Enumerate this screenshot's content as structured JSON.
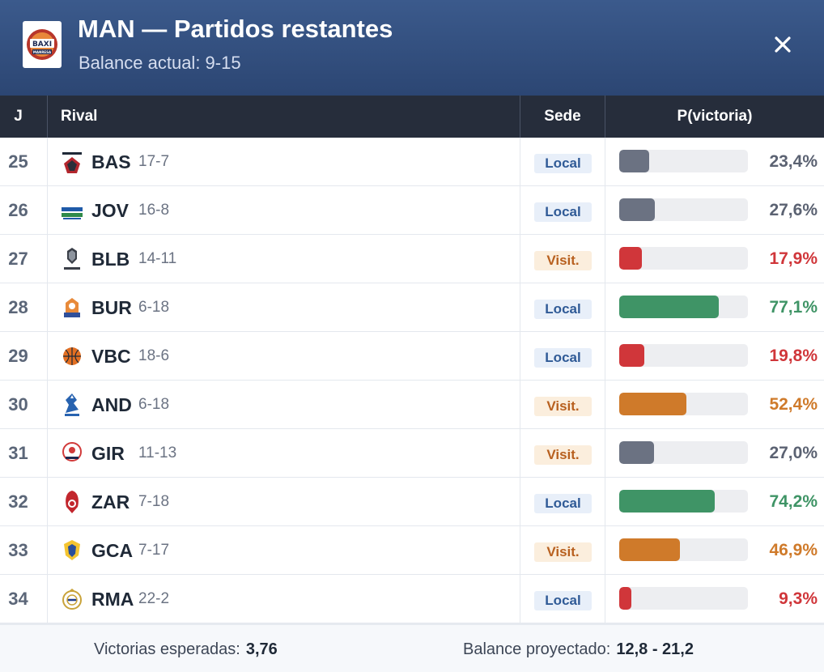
{
  "header": {
    "title": "MAN — Partidos restantes",
    "subtitle": "Balance actual: 9-15",
    "logo_text": "BAXI",
    "logo_subtext": "MANRESA"
  },
  "columns": {
    "j": "J",
    "rival": "Rival",
    "sede": "Sede",
    "prob": "P(victoria)"
  },
  "colors": {
    "low": "#d0363a",
    "mid": "#6b7282",
    "even": "#cf7a2a",
    "high": "#3f9466",
    "local_badge": "#2f5a96",
    "visit_badge": "#b8601f"
  },
  "games": [
    {
      "j": "25",
      "abbr": "BAS",
      "record": "17-7",
      "venue": "Local",
      "venue_type": "local",
      "p": 0.234,
      "p_text": "23,4%",
      "tier": "mid",
      "logo": "baskonia-logo"
    },
    {
      "j": "26",
      "abbr": "JOV",
      "record": "16-8",
      "venue": "Local",
      "venue_type": "local",
      "p": 0.276,
      "p_text": "27,6%",
      "tier": "mid",
      "logo": "joventut-logo"
    },
    {
      "j": "27",
      "abbr": "BLB",
      "record": "14-11",
      "venue": "Visit.",
      "venue_type": "visit",
      "p": 0.179,
      "p_text": "17,9%",
      "tier": "low",
      "logo": "bilbao-logo"
    },
    {
      "j": "28",
      "abbr": "BUR",
      "record": "6-18",
      "venue": "Local",
      "venue_type": "local",
      "p": 0.771,
      "p_text": "77,1%",
      "tier": "high",
      "logo": "burgos-logo"
    },
    {
      "j": "29",
      "abbr": "VBC",
      "record": "18-6",
      "venue": "Local",
      "venue_type": "local",
      "p": 0.198,
      "p_text": "19,8%",
      "tier": "low",
      "logo": "valencia-logo"
    },
    {
      "j": "30",
      "abbr": "AND",
      "record": "6-18",
      "venue": "Visit.",
      "venue_type": "visit",
      "p": 0.524,
      "p_text": "52,4%",
      "tier": "even",
      "logo": "andorra-logo"
    },
    {
      "j": "31",
      "abbr": "GIR",
      "record": "11-13",
      "venue": "Visit.",
      "venue_type": "visit",
      "p": 0.27,
      "p_text": "27,0%",
      "tier": "mid",
      "logo": "girona-logo"
    },
    {
      "j": "32",
      "abbr": "ZAR",
      "record": "7-18",
      "venue": "Local",
      "venue_type": "local",
      "p": 0.742,
      "p_text": "74,2%",
      "tier": "high",
      "logo": "zaragoza-logo"
    },
    {
      "j": "33",
      "abbr": "GCA",
      "record": "7-17",
      "venue": "Visit.",
      "venue_type": "visit",
      "p": 0.469,
      "p_text": "46,9%",
      "tier": "even",
      "logo": "gran-canaria-logo"
    },
    {
      "j": "34",
      "abbr": "RMA",
      "record": "22-2",
      "venue": "Local",
      "venue_type": "local",
      "p": 0.093,
      "p_text": "9,3%",
      "tier": "low",
      "logo": "real-madrid-logo"
    }
  ],
  "footer": {
    "expected_label": "Victorias esperadas:",
    "expected_value": "3,76",
    "projected_label": "Balance proyectado:",
    "projected_value": "12,8 - 21,2"
  }
}
